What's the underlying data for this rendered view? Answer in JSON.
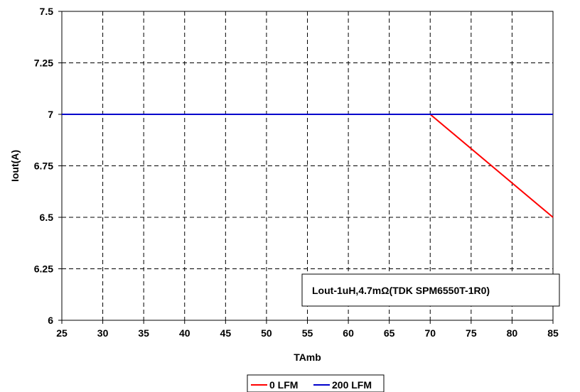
{
  "chart_data": {
    "type": "line",
    "xlabel": "TAmb",
    "ylabel": "Iout(A)",
    "xlim": [
      25,
      85
    ],
    "ylim": [
      6,
      7.5
    ],
    "xticks": [
      "25",
      "30",
      "35",
      "40",
      "45",
      "50",
      "55",
      "60",
      "65",
      "70",
      "75",
      "80",
      "85"
    ],
    "yticks": [
      "6",
      "6.25",
      "6.5",
      "6.75",
      "7",
      "7.25",
      "7.5"
    ],
    "grid": true,
    "legend_position": "bottom",
    "annotation": "Lout-1uH,4.7mΩ(TDK SPM6550T-1R0)",
    "series": [
      {
        "name": "0 LFM",
        "color": "#ff0000",
        "x": [
          25,
          70,
          85
        ],
        "y": [
          7,
          7,
          6.5
        ]
      },
      {
        "name": "200 LFM",
        "color": "#0000cc",
        "x": [
          25,
          85
        ],
        "y": [
          7,
          7
        ]
      }
    ]
  }
}
